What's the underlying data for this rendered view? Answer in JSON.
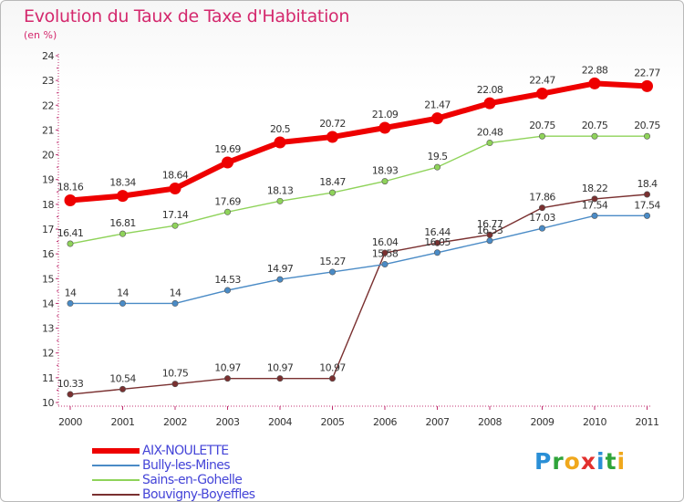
{
  "title": "Evolution du Taux de Taxe d'Habitation",
  "subtitle": "(en %)",
  "logo": {
    "text": "Proxiti",
    "letters": [
      {
        "ch": "P",
        "color": "#2a8fd6"
      },
      {
        "ch": "r",
        "color": "#2fa43a"
      },
      {
        "ch": "o",
        "color": "#f0a81c"
      },
      {
        "ch": "x",
        "color": "#e2302e"
      },
      {
        "ch": "i",
        "color": "#2a8fd6"
      },
      {
        "ch": "t",
        "color": "#2fa43a"
      },
      {
        "ch": "i",
        "color": "#f0a81c"
      }
    ]
  },
  "chart_data": {
    "type": "line",
    "title": "Evolution du Taux de Taxe d'Habitation",
    "subtitle": "(en %)",
    "xlabel": "",
    "ylabel": "",
    "categories": [
      "2000",
      "2001",
      "2002",
      "2003",
      "2004",
      "2005",
      "2006",
      "2007",
      "2008",
      "2009",
      "2010",
      "2011"
    ],
    "yticks": [
      "10",
      "11",
      "12",
      "13",
      "14",
      "15",
      "16",
      "17",
      "18",
      "19",
      "20",
      "21",
      "22",
      "23",
      "24"
    ],
    "ylim": [
      10,
      24
    ],
    "grid": false,
    "legend_position": "bottom-left",
    "series": [
      {
        "name": "AIX-NOULETTE",
        "color": "#ee0000",
        "values": [
          18.16,
          18.34,
          18.64,
          19.69,
          20.5,
          20.72,
          21.09,
          21.47,
          22.08,
          22.47,
          22.88,
          22.77
        ],
        "labels": [
          "18.16",
          "18.34",
          "18.64",
          "19.69",
          "20.5",
          "20.72",
          "21.09",
          "21.47",
          "22.08",
          "22.47",
          "22.88",
          "22.77"
        ]
      },
      {
        "name": "Bully-les-Mines",
        "color": "#4a8bc6",
        "values": [
          14,
          14,
          14,
          14.53,
          14.97,
          15.27,
          15.58,
          16.05,
          16.53,
          17.03,
          17.54,
          17.54
        ],
        "labels": [
          "14",
          "14",
          "14",
          "14.53",
          "14.97",
          "15.27",
          "15.58",
          "16.05",
          "16.53",
          "17.03",
          "17.54",
          "17.54"
        ]
      },
      {
        "name": "Sains-en-Gohelle",
        "color": "#8fd35a",
        "values": [
          16.41,
          16.81,
          17.14,
          17.69,
          18.13,
          18.47,
          18.93,
          19.5,
          20.48,
          20.75,
          20.75,
          20.75
        ],
        "labels": [
          "16.41",
          "16.81",
          "17.14",
          "17.69",
          "18.13",
          "18.47",
          "18.93",
          "19.5",
          "20.48",
          "20.75",
          "20.75",
          "20.75"
        ]
      },
      {
        "name": "Bouvigny-Boyeffles",
        "color": "#7a3030",
        "values": [
          10.33,
          10.54,
          10.75,
          10.97,
          10.97,
          10.97,
          16.04,
          16.44,
          16.77,
          17.86,
          18.22,
          18.4
        ],
        "labels": [
          "10.33",
          "10.54",
          "10.75",
          "10.97",
          "10.97",
          "10.97",
          "16.04",
          "16.44",
          "16.77",
          "17.86",
          "18.22",
          "18.4"
        ]
      }
    ]
  }
}
